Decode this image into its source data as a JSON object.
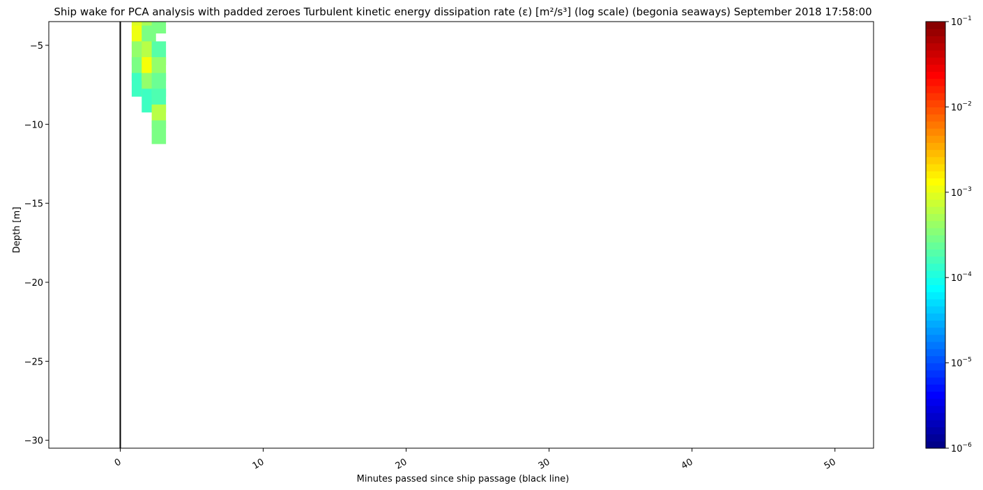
{
  "chart_data": {
    "type": "heatmap",
    "title": "Ship wake for PCA analysis with padded zeroes Turbulent kinetic energy dissipation rate (ε) [m²/s³] (log scale) (begonia seaways) September 2018 17:58:00",
    "xlabel": "Minutes passed since ship passage (black line)",
    "ylabel": "Depth [m]",
    "xlim": [
      -5,
      52.7
    ],
    "ylim": [
      -30.5,
      -3.5
    ],
    "x_ticks": [
      0,
      10,
      20,
      30,
      40,
      50
    ],
    "x_tick_labels": [
      "0",
      "10",
      "20",
      "30",
      "40",
      "50"
    ],
    "y_ticks": [
      -5,
      -10,
      -15,
      -20,
      -25,
      -30
    ],
    "y_tick_labels": [
      "−5",
      "−10",
      "−15",
      "−20",
      "−25",
      "−30"
    ],
    "ship_passage_x": 0,
    "colorbar": {
      "scale": "log",
      "colormap": "jet",
      "range": [
        1e-06,
        0.1
      ],
      "ticks": [
        {
          "mantissa": "10",
          "exponent": "−6",
          "value": 1e-06
        },
        {
          "mantissa": "10",
          "exponent": "−5",
          "value": 1e-05
        },
        {
          "mantissa": "10",
          "exponent": "−4",
          "value": 0.0001
        },
        {
          "mantissa": "10",
          "exponent": "−3",
          "value": 0.001
        },
        {
          "mantissa": "10",
          "exponent": "−2",
          "value": 0.01
        },
        {
          "mantissa": "10",
          "exponent": "−1",
          "value": 0.1
        }
      ]
    },
    "wake_cells": [
      {
        "x": 1.3,
        "depth": -3.5,
        "epsilon": 0.0009
      },
      {
        "x": 1.3,
        "depth": -4.5,
        "epsilon": 0.0011
      },
      {
        "x": 1.3,
        "depth": -5.5,
        "epsilon": 0.0004
      },
      {
        "x": 1.3,
        "depth": -6.5,
        "epsilon": 0.0003
      },
      {
        "x": 1.3,
        "depth": -7.5,
        "epsilon": 0.00015
      },
      {
        "x": 2.0,
        "depth": -3.5,
        "epsilon": 0.0005
      },
      {
        "x": 2.0,
        "depth": -4.5,
        "epsilon": 0.0003
      },
      {
        "x": 2.0,
        "depth": -5.5,
        "epsilon": 0.0006
      },
      {
        "x": 2.0,
        "depth": -6.5,
        "epsilon": 0.0012
      },
      {
        "x": 2.0,
        "depth": -7.5,
        "epsilon": 0.0004
      },
      {
        "x": 2.0,
        "depth": -8.5,
        "epsilon": 0.00015
      },
      {
        "x": 2.7,
        "depth": -3.5,
        "epsilon": 0.0003
      },
      {
        "x": 2.7,
        "depth": -5.5,
        "epsilon": 0.0002
      },
      {
        "x": 2.7,
        "depth": -6.5,
        "epsilon": 0.0004
      },
      {
        "x": 2.7,
        "depth": -7.5,
        "epsilon": 0.00025
      },
      {
        "x": 2.7,
        "depth": -8.5,
        "epsilon": 0.00018
      },
      {
        "x": 2.7,
        "depth": -9.5,
        "epsilon": 0.0006
      },
      {
        "x": 2.7,
        "depth": -10.5,
        "epsilon": 0.0003
      }
    ]
  }
}
